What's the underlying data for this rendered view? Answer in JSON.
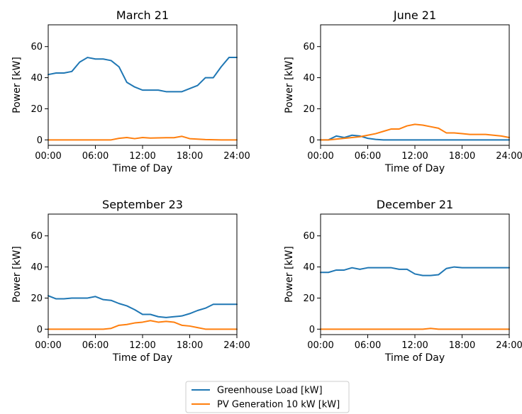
{
  "colors": {
    "load": "#1f77b4",
    "pv": "#ff7f0e"
  },
  "legend": {
    "items": [
      {
        "label": "Greenhouse Load [kW]",
        "color": "#1f77b4"
      },
      {
        "label": "PV Generation 10 kW [kW]",
        "color": "#ff7f0e"
      }
    ],
    "placement": "bottom-center"
  },
  "chart_data": [
    {
      "type": "line",
      "title": "March 21",
      "xlabel": "Time of Day",
      "ylabel": "Power [kW]",
      "xlim": [
        0,
        24
      ],
      "ylim": [
        -3.5,
        74
      ],
      "xticks": [
        0,
        6,
        12,
        18,
        24
      ],
      "xtick_labels": [
        "00:00",
        "06:00",
        "12:00",
        "18:00",
        "24:00"
      ],
      "yticks": [
        0,
        20,
        40,
        60
      ],
      "grid": false,
      "x": [
        0,
        1,
        2,
        3,
        4,
        5,
        6,
        7,
        8,
        9,
        10,
        11,
        12,
        13,
        14,
        15,
        16,
        17,
        18,
        19,
        20,
        21,
        22,
        23,
        24
      ],
      "series": [
        {
          "name": "Greenhouse Load [kW]",
          "values": [
            42,
            43,
            43,
            44,
            50,
            53,
            52,
            52,
            51,
            47,
            37,
            34,
            32,
            32,
            32,
            31,
            31,
            31,
            33,
            35,
            40,
            40,
            47,
            53,
            53
          ]
        },
        {
          "name": "PV Generation 10 kW [kW]",
          "values": [
            0,
            0,
            0,
            0,
            0,
            0,
            0,
            0,
            0,
            1,
            1.5,
            0.8,
            1.5,
            1.2,
            1.3,
            1.4,
            1.4,
            2.3,
            0.8,
            0.5,
            0.2,
            0.1,
            0,
            0,
            0
          ]
        }
      ]
    },
    {
      "type": "line",
      "title": "June 21",
      "xlabel": "Time of Day",
      "ylabel": "Power [kW]",
      "xlim": [
        0,
        24
      ],
      "ylim": [
        -3.5,
        74
      ],
      "xticks": [
        0,
        6,
        12,
        18,
        24
      ],
      "xtick_labels": [
        "00:00",
        "06:00",
        "12:00",
        "18:00",
        "24:00"
      ],
      "yticks": [
        0,
        20,
        40,
        60
      ],
      "grid": false,
      "x": [
        0,
        1,
        2,
        3,
        4,
        5,
        6,
        7,
        8,
        9,
        10,
        11,
        12,
        13,
        14,
        15,
        16,
        17,
        18,
        19,
        20,
        21,
        22,
        23,
        24
      ],
      "series": [
        {
          "name": "Greenhouse Load [kW]",
          "values": [
            0,
            0,
            2.5,
            1.5,
            3,
            2.5,
            1,
            0.3,
            0,
            0,
            0,
            0,
            0,
            0,
            0,
            0,
            0,
            0,
            0,
            0,
            0,
            0,
            0,
            0,
            0
          ]
        },
        {
          "name": "PV Generation 10 kW [kW]",
          "values": [
            0,
            0,
            0.5,
            1,
            1.5,
            2,
            3,
            4,
            5.5,
            7,
            7,
            9,
            10,
            9.5,
            8.5,
            7.5,
            4.5,
            4.5,
            4,
            3.5,
            3.5,
            3.5,
            3,
            2.5,
            1.5
          ]
        }
      ]
    },
    {
      "type": "line",
      "title": "September 23",
      "xlabel": "Time of Day",
      "ylabel": "Power [kW]",
      "xlim": [
        0,
        24
      ],
      "ylim": [
        -3.5,
        74
      ],
      "xticks": [
        0,
        6,
        12,
        18,
        24
      ],
      "xtick_labels": [
        "00:00",
        "06:00",
        "12:00",
        "18:00",
        "24:00"
      ],
      "yticks": [
        0,
        20,
        40,
        60
      ],
      "grid": false,
      "x": [
        0,
        1,
        2,
        3,
        4,
        5,
        6,
        7,
        8,
        9,
        10,
        11,
        12,
        13,
        14,
        15,
        16,
        17,
        18,
        19,
        20,
        21,
        22,
        23,
        24
      ],
      "series": [
        {
          "name": "Greenhouse Load [kW]",
          "values": [
            21.5,
            19.5,
            19.5,
            20,
            20,
            20,
            21,
            19,
            18.5,
            16.5,
            15,
            12.5,
            9.5,
            9.5,
            8,
            7.5,
            8,
            8.5,
            10,
            12,
            13.5,
            16,
            16,
            16,
            16
          ]
        },
        {
          "name": "PV Generation 10 kW [kW]",
          "values": [
            0,
            0,
            0,
            0,
            0,
            0,
            0,
            0,
            0.5,
            2.5,
            3,
            4,
            4.5,
            5.5,
            4.5,
            5,
            4.5,
            2.5,
            2,
            1,
            0,
            0,
            0,
            0,
            0
          ]
        }
      ]
    },
    {
      "type": "line",
      "title": "December 21",
      "xlabel": "Time of Day",
      "ylabel": "Power [kW]",
      "xlim": [
        0,
        24
      ],
      "ylim": [
        -3.5,
        74
      ],
      "xticks": [
        0,
        6,
        12,
        18,
        24
      ],
      "xtick_labels": [
        "00:00",
        "06:00",
        "12:00",
        "18:00",
        "24:00"
      ],
      "yticks": [
        0,
        20,
        40,
        60
      ],
      "grid": false,
      "x": [
        0,
        1,
        2,
        3,
        4,
        5,
        6,
        7,
        8,
        9,
        10,
        11,
        12,
        13,
        14,
        15,
        16,
        17,
        18,
        19,
        20,
        21,
        22,
        23,
        24
      ],
      "series": [
        {
          "name": "Greenhouse Load [kW]",
          "values": [
            36.5,
            36.5,
            38,
            38,
            39.5,
            38.5,
            39.5,
            39.5,
            39.5,
            39.5,
            38.5,
            38.5,
            35.5,
            34.5,
            34.5,
            35,
            39,
            40,
            39.5,
            39.5,
            39.5,
            39.5,
            39.5,
            39.5,
            39.5
          ]
        },
        {
          "name": "PV Generation 10 kW [kW]",
          "values": [
            0,
            0,
            0,
            0,
            0,
            0,
            0,
            0,
            0,
            0,
            0,
            0,
            0,
            0,
            0.5,
            0,
            0,
            0,
            0,
            0,
            0,
            0,
            0,
            0,
            0
          ]
        }
      ]
    }
  ]
}
